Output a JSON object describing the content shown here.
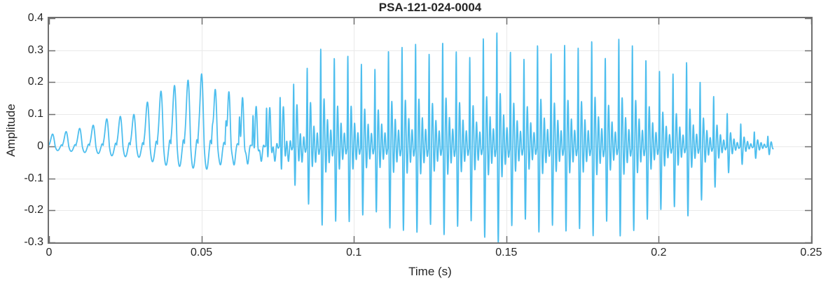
{
  "figure": {
    "background": "#FFFFFF"
  },
  "chart_data": {
    "type": "line",
    "title": "PSA-121-024-0004",
    "xlabel": "Time (s)",
    "ylabel": "Amplitude",
    "xlim": [
      0,
      0.25
    ],
    "ylim": [
      -0.3,
      0.4
    ],
    "xticks": [
      0,
      0.05,
      0.1,
      0.15,
      0.2,
      0.25
    ],
    "xtick_labels": [
      "0",
      "0.05",
      "0.1",
      "0.15",
      "0.2",
      "0.25"
    ],
    "yticks": [
      -0.3,
      -0.2,
      -0.1,
      0,
      0.1,
      0.2,
      0.3,
      0.4
    ],
    "ytick_labels": [
      "-0.3",
      "-0.2",
      "-0.1",
      "0",
      "0.1",
      "0.2",
      "0.3",
      "0.4"
    ],
    "grid": true,
    "legend": null,
    "line_color": "#4DBEEE",
    "line_width": 1.8,
    "axis_color": "#6F6F6F",
    "grid_color": "#E9E9E9",
    "text_color": "#262626",
    "signal": {
      "kind": "speech-waveform",
      "duration_s": 0.2375,
      "pitch_hz": 225,
      "peak_amplitude": 0.36,
      "min_amplitude": -0.29,
      "n_points": 6000,
      "seed": 11,
      "amp_jitter": 0.3,
      "bright_ramp": [
        0.045,
        0.095
      ],
      "neg_scale_range": [
        0.5,
        0.85
      ],
      "envelope": [
        [
          0.0,
          0.04
        ],
        [
          0.008,
          0.055
        ],
        [
          0.016,
          0.075
        ],
        [
          0.024,
          0.105
        ],
        [
          0.032,
          0.15
        ],
        [
          0.04,
          0.21
        ],
        [
          0.048,
          0.24
        ],
        [
          0.056,
          0.21
        ],
        [
          0.064,
          0.195
        ],
        [
          0.072,
          0.215
        ],
        [
          0.08,
          0.25
        ],
        [
          0.088,
          0.32
        ],
        [
          0.094,
          0.33
        ],
        [
          0.1,
          0.27
        ],
        [
          0.106,
          0.255
        ],
        [
          0.112,
          0.29
        ],
        [
          0.12,
          0.31
        ],
        [
          0.128,
          0.33
        ],
        [
          0.136,
          0.34
        ],
        [
          0.144,
          0.33
        ],
        [
          0.152,
          0.33
        ],
        [
          0.16,
          0.31
        ],
        [
          0.168,
          0.33
        ],
        [
          0.176,
          0.31
        ],
        [
          0.184,
          0.33
        ],
        [
          0.192,
          0.3
        ],
        [
          0.2,
          0.29
        ],
        [
          0.208,
          0.26
        ],
        [
          0.214,
          0.21
        ],
        [
          0.22,
          0.14
        ],
        [
          0.226,
          0.08
        ],
        [
          0.231,
          0.045
        ],
        [
          0.2375,
          0.035
        ]
      ],
      "smooth_shape": [
        [
          0.95,
          0.27,
          0.13
        ],
        [
          -0.6,
          0.62,
          0.16
        ],
        [
          0.22,
          0.88,
          0.08
        ]
      ],
      "bright_shape": [
        [
          1.0,
          0.055,
          0.028
        ],
        [
          -0.95,
          0.155,
          0.042
        ],
        [
          0.45,
          0.3,
          0.05
        ],
        [
          -0.34,
          0.43,
          0.05
        ],
        [
          0.3,
          0.55,
          0.055
        ],
        [
          -0.22,
          0.67,
          0.055
        ],
        [
          0.18,
          0.79,
          0.055
        ],
        [
          -0.12,
          0.91,
          0.05
        ]
      ]
    }
  }
}
